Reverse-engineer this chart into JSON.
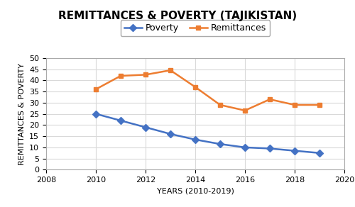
{
  "title": "REMITTANCES & POVERTY (TAJIKISTAN)",
  "ylabel": "REMITTANCES & POVERTY",
  "xlabel": "YEARS (2010-2019)",
  "years": [
    2010,
    2011,
    2012,
    2013,
    2014,
    2015,
    2016,
    2017,
    2018,
    2019
  ],
  "poverty": [
    25.0,
    22.0,
    19.0,
    16.0,
    13.5,
    11.5,
    10.0,
    9.5,
    8.5,
    7.5
  ],
  "remittances": [
    36.0,
    42.0,
    42.5,
    44.5,
    37.0,
    29.0,
    26.5,
    31.5,
    29.0,
    29.0
  ],
  "poverty_color": "#4472C4",
  "remittances_color": "#ED7D31",
  "poverty_marker": "D",
  "remittances_marker": "s",
  "xlim": [
    2008,
    2020
  ],
  "ylim": [
    0.0,
    50.0
  ],
  "yticks": [
    0.0,
    5.0,
    10.0,
    15.0,
    20.0,
    25.0,
    30.0,
    35.0,
    40.0,
    45.0,
    50.0
  ],
  "xticks": [
    2008,
    2010,
    2012,
    2014,
    2016,
    2018,
    2020
  ],
  "title_fontsize": 11,
  "axis_label_fontsize": 8,
  "tick_fontsize": 8,
  "legend_fontsize": 9,
  "background_color": "#FFFFFF",
  "grid_color": "#D9D9D9"
}
